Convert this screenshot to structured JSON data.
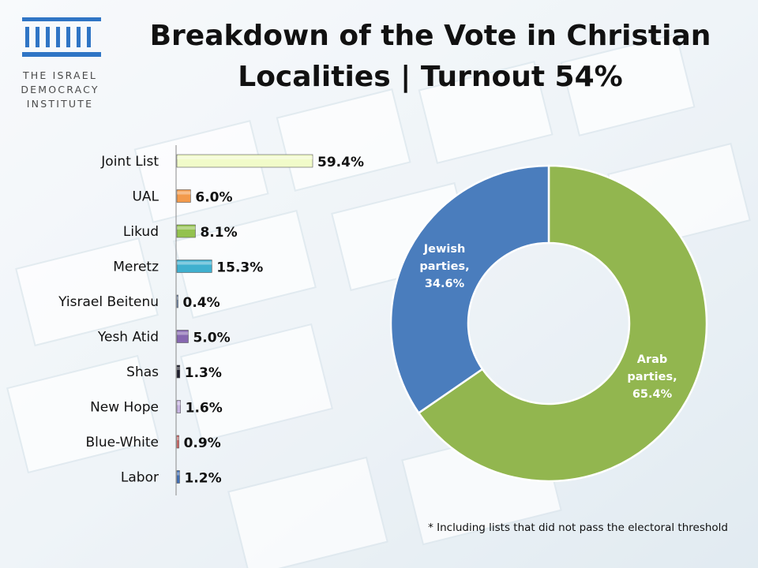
{
  "logo": {
    "line1": "THE ISRAEL",
    "line2": "DEMOCRACY",
    "line3": "INSTITUTE",
    "icon": "pillars-icon",
    "color": "#2f75c5"
  },
  "title": {
    "line1": "Breakdown of the Vote in Christian",
    "line2": "Localities | Turnout 54%"
  },
  "footnote": "* Including lists that did not pass the electoral threshold",
  "chart_data": [
    {
      "type": "bar",
      "orientation": "horizontal",
      "categories": [
        "Joint List",
        "UAL",
        "Likud",
        "Meretz",
        "Yisrael Beitenu",
        "Yesh Atid",
        "Shas",
        "New Hope",
        "Blue-White",
        "Labor"
      ],
      "values": [
        59.4,
        6.0,
        8.1,
        15.3,
        0.4,
        5.0,
        1.3,
        1.6,
        0.9,
        1.2
      ],
      "data_labels": [
        "59.4%",
        "6.0%",
        "8.1%",
        "15.3%",
        "0.4%",
        "5.0%",
        "1.3%",
        "1.6%",
        "0.9%",
        "1.2%"
      ],
      "colors": [
        "#f1fbc9",
        "#f39a4b",
        "#93c24e",
        "#3fb0cf",
        "#6f8fbf",
        "#8667b0",
        "#1f1f2f",
        "#c8b6e4",
        "#d96b6b",
        "#3f6fb8"
      ],
      "value_axis": {
        "visible": false,
        "min": 0,
        "max": 60
      }
    },
    {
      "type": "pie",
      "style": "donut",
      "slices": [
        {
          "label": "Arab parties,",
          "value": 65.4,
          "value_label": "65.4%",
          "color": "#92b64f"
        },
        {
          "label": "Jewish parties,",
          "value": 34.6,
          "value_label": "34.6%",
          "color": "#4a7dbd"
        }
      ]
    }
  ]
}
